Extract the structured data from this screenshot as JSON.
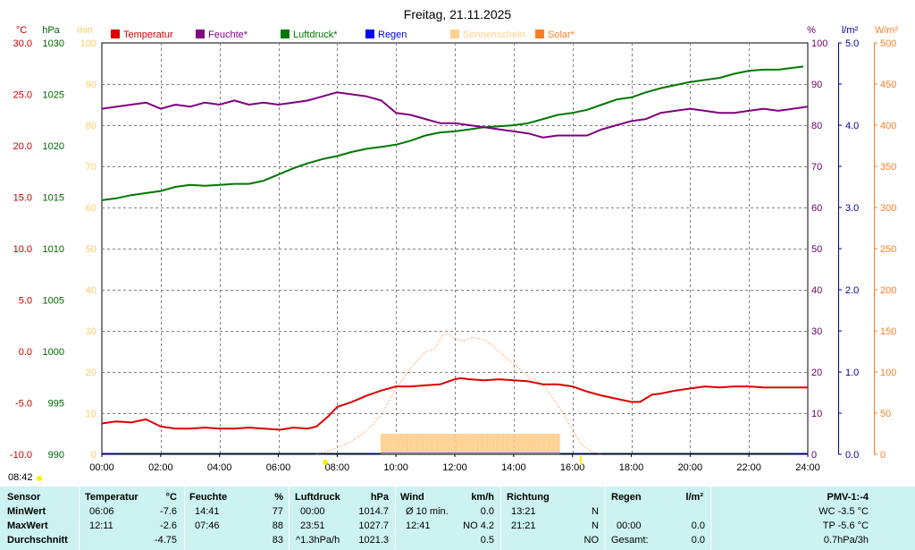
{
  "title": "Freitag, 21.11.2025",
  "timestamp": "08:42",
  "axes": {
    "left_units": [
      "°C",
      "hPa",
      "min"
    ],
    "right_units": [
      "%",
      "l/m²",
      "W/m²"
    ],
    "temp_ticks": [
      "30.0",
      "25.0",
      "20.0",
      "15.0",
      "10.0",
      "5.0",
      "0.0",
      "-5.0",
      "-10.0"
    ],
    "hpa_ticks": [
      "1030",
      "1025",
      "1020",
      "1015",
      "1010",
      "1005",
      "1000",
      "995",
      "990"
    ],
    "min_ticks": [
      "100",
      "90",
      "80",
      "70",
      "60",
      "50",
      "40",
      "30",
      "20",
      "10",
      "0"
    ],
    "pct_ticks": [
      "100",
      "90",
      "80",
      "70",
      "60",
      "50",
      "40",
      "30",
      "20",
      "10",
      "0"
    ],
    "rain_ticks": [
      "5.0",
      "4.0",
      "3.0",
      "2.0",
      "1.0",
      "0.0"
    ],
    "solar_ticks": [
      "500",
      "450",
      "400",
      "350",
      "300",
      "250",
      "200",
      "150",
      "100",
      "50",
      "0"
    ],
    "time_ticks": [
      "00:00",
      "02:00",
      "04:00",
      "06:00",
      "08:00",
      "10:00",
      "12:00",
      "14:00",
      "16:00",
      "18:00",
      "20:00",
      "22:00",
      "24:00"
    ]
  },
  "legend": [
    {
      "label": "Temperatur",
      "color": "#dd0000"
    },
    {
      "label": "Feuchte*",
      "color": "#800080"
    },
    {
      "label": "Luftdruck*",
      "color": "#007700"
    },
    {
      "label": "Regen",
      "color": "#0000ff"
    },
    {
      "label": "Sonnenschein",
      "color": "#ffd090"
    },
    {
      "label": "Solar*",
      "color": "#ff7f27"
    }
  ],
  "colors": {
    "temp": "#dd0000",
    "hum": "#800080",
    "press": "#007700",
    "rain": "#0000ff",
    "sun": "#ffd090",
    "solar": "#ff7f27",
    "axis_temp": "#cc0000",
    "axis_hpa": "#006600",
    "axis_min": "#ffcc66",
    "axis_pct": "#660066",
    "axis_rain": "#000099",
    "axis_solar": "#ff7f27",
    "grid": "#808080"
  },
  "chart_data": {
    "type": "line",
    "title": "Freitag, 21.11.2025",
    "x_unit": "hours",
    "xlim": [
      0,
      24
    ],
    "series": [
      {
        "name": "Temperatur",
        "unit": "°C",
        "ylim": [
          -10,
          30
        ],
        "points": [
          [
            0,
            -7.0
          ],
          [
            0.5,
            -6.8
          ],
          [
            1,
            -6.9
          ],
          [
            1.5,
            -6.6
          ],
          [
            2,
            -7.3
          ],
          [
            2.5,
            -7.5
          ],
          [
            3,
            -7.5
          ],
          [
            3.5,
            -7.4
          ],
          [
            4,
            -7.5
          ],
          [
            4.5,
            -7.5
          ],
          [
            5,
            -7.4
          ],
          [
            5.5,
            -7.5
          ],
          [
            6,
            -7.6
          ],
          [
            6.1,
            -7.6
          ],
          [
            6.5,
            -7.4
          ],
          [
            7,
            -7.5
          ],
          [
            7.3,
            -7.3
          ],
          [
            7.7,
            -6.3
          ],
          [
            8,
            -5.4
          ],
          [
            8.5,
            -4.9
          ],
          [
            9,
            -4.3
          ],
          [
            9.5,
            -3.8
          ],
          [
            10,
            -3.4
          ],
          [
            10.5,
            -3.4
          ],
          [
            11,
            -3.3
          ],
          [
            11.5,
            -3.2
          ],
          [
            12,
            -2.7
          ],
          [
            12.2,
            -2.6
          ],
          [
            12.5,
            -2.7
          ],
          [
            13,
            -2.8
          ],
          [
            13.5,
            -2.7
          ],
          [
            14,
            -2.8
          ],
          [
            14.5,
            -2.9
          ],
          [
            15,
            -3.2
          ],
          [
            15.5,
            -3.2
          ],
          [
            16,
            -3.4
          ],
          [
            16.5,
            -3.9
          ],
          [
            17,
            -4.3
          ],
          [
            17.5,
            -4.6
          ],
          [
            18,
            -4.9
          ],
          [
            18.3,
            -4.9
          ],
          [
            18.7,
            -4.2
          ],
          [
            19,
            -4.1
          ],
          [
            19.5,
            -3.8
          ],
          [
            20,
            -3.6
          ],
          [
            20.5,
            -3.4
          ],
          [
            21,
            -3.5
          ],
          [
            21.5,
            -3.4
          ],
          [
            22,
            -3.4
          ],
          [
            22.5,
            -3.5
          ],
          [
            23,
            -3.5
          ],
          [
            24,
            -3.5
          ]
        ]
      },
      {
        "name": "Feuchte*",
        "unit": "%",
        "ylim": [
          0,
          100
        ],
        "points": [
          [
            0,
            84
          ],
          [
            0.5,
            84.5
          ],
          [
            1,
            85
          ],
          [
            1.5,
            85.5
          ],
          [
            2,
            84
          ],
          [
            2.5,
            85
          ],
          [
            3,
            84.5
          ],
          [
            3.5,
            85.5
          ],
          [
            4,
            85
          ],
          [
            4.5,
            86
          ],
          [
            5,
            85
          ],
          [
            5.5,
            85.5
          ],
          [
            6,
            85
          ],
          [
            6.5,
            85.5
          ],
          [
            7,
            86
          ],
          [
            7.5,
            87
          ],
          [
            8,
            88
          ],
          [
            8.5,
            87.5
          ],
          [
            9,
            87
          ],
          [
            9.5,
            86
          ],
          [
            10,
            83
          ],
          [
            10.5,
            82.5
          ],
          [
            11,
            81.5
          ],
          [
            11.5,
            80.5
          ],
          [
            12,
            80.5
          ],
          [
            12.5,
            80
          ],
          [
            13,
            79.5
          ],
          [
            13.5,
            79
          ],
          [
            14,
            78.5
          ],
          [
            14.5,
            78
          ],
          [
            15,
            77
          ],
          [
            15.5,
            77.5
          ],
          [
            16,
            77.5
          ],
          [
            16.5,
            77.5
          ],
          [
            17,
            79
          ],
          [
            17.5,
            80
          ],
          [
            18,
            81
          ],
          [
            18.5,
            81.5
          ],
          [
            19,
            83
          ],
          [
            19.5,
            83.5
          ],
          [
            20,
            84
          ],
          [
            20.5,
            83.5
          ],
          [
            21,
            83
          ],
          [
            21.5,
            83
          ],
          [
            22,
            83.5
          ],
          [
            22.5,
            84
          ],
          [
            23,
            83.5
          ],
          [
            24,
            84.5
          ]
        ]
      },
      {
        "name": "Luftdruck*",
        "unit": "hPa",
        "ylim": [
          990,
          1030
        ],
        "points": [
          [
            0,
            1014.7
          ],
          [
            0.5,
            1014.9
          ],
          [
            1,
            1015.2
          ],
          [
            1.5,
            1015.4
          ],
          [
            2,
            1015.6
          ],
          [
            2.5,
            1016.0
          ],
          [
            3,
            1016.2
          ],
          [
            3.5,
            1016.1
          ],
          [
            4,
            1016.2
          ],
          [
            4.5,
            1016.3
          ],
          [
            5,
            1016.3
          ],
          [
            5.5,
            1016.6
          ],
          [
            6,
            1017.2
          ],
          [
            6.5,
            1017.8
          ],
          [
            7,
            1018.3
          ],
          [
            7.5,
            1018.7
          ],
          [
            8,
            1019.0
          ],
          [
            8.5,
            1019.4
          ],
          [
            9,
            1019.7
          ],
          [
            9.5,
            1019.9
          ],
          [
            10,
            1020.1
          ],
          [
            10.5,
            1020.5
          ],
          [
            11,
            1021.0
          ],
          [
            11.5,
            1021.3
          ],
          [
            12,
            1021.4
          ],
          [
            12.5,
            1021.6
          ],
          [
            13,
            1021.8
          ],
          [
            13.5,
            1021.9
          ],
          [
            14,
            1022.0
          ],
          [
            14.5,
            1022.2
          ],
          [
            15,
            1022.6
          ],
          [
            15.5,
            1023.0
          ],
          [
            16,
            1023.2
          ],
          [
            16.5,
            1023.5
          ],
          [
            17,
            1024.0
          ],
          [
            17.5,
            1024.5
          ],
          [
            18,
            1024.7
          ],
          [
            18.5,
            1025.2
          ],
          [
            19,
            1025.6
          ],
          [
            19.5,
            1025.9
          ],
          [
            20,
            1026.2
          ],
          [
            20.5,
            1026.4
          ],
          [
            21,
            1026.6
          ],
          [
            21.5,
            1027.0
          ],
          [
            22,
            1027.3
          ],
          [
            22.5,
            1027.4
          ],
          [
            23,
            1027.4
          ],
          [
            23.85,
            1027.7
          ]
        ]
      },
      {
        "name": "Solar*",
        "unit": "W/m²",
        "ylim": [
          0,
          500
        ],
        "points": [
          [
            7.3,
            0
          ],
          [
            7.5,
            2
          ],
          [
            8,
            8
          ],
          [
            8.5,
            16
          ],
          [
            9,
            28
          ],
          [
            9.5,
            48
          ],
          [
            10,
            80
          ],
          [
            10.5,
            105
          ],
          [
            11,
            125
          ],
          [
            11.3,
            128
          ],
          [
            11.6,
            145
          ],
          [
            11.8,
            147
          ],
          [
            12,
            140
          ],
          [
            12.3,
            138
          ],
          [
            12.6,
            142
          ],
          [
            12.9,
            140
          ],
          [
            13.2,
            135
          ],
          [
            13.5,
            125
          ],
          [
            14,
            110
          ],
          [
            14.5,
            95
          ],
          [
            15,
            85
          ],
          [
            15.5,
            60
          ],
          [
            16,
            30
          ],
          [
            16.3,
            12
          ],
          [
            16.7,
            2
          ],
          [
            17,
            0
          ]
        ]
      },
      {
        "name": "Sonnenschein",
        "unit": "min",
        "ylim": [
          0,
          100
        ],
        "intervals": [
          [
            9.5,
            15.6
          ]
        ],
        "level": 5
      }
    ]
  },
  "stats": {
    "headers": {
      "sensor": "Sensor",
      "temp": "Temperatur",
      "temp_unit": "°C",
      "hum": "Feuchte",
      "hum_unit": "%",
      "press": "Luftdruck",
      "press_unit": "hPa",
      "wind": "Wind",
      "wind_unit": "km/h",
      "dir": "Richtung",
      "rain": "Regen",
      "rain_unit": "l/m²",
      "pmv": "PMV-1:-4"
    },
    "rows": [
      {
        "label": "MinWert",
        "temp_time": "06:06",
        "temp_val": "-7.6",
        "hum_time": "14:41",
        "hum_val": "77",
        "press_time": "00:00",
        "press_val": "1014.7",
        "wind_label": "Ø 10 min.",
        "wind_val": "0.0",
        "dir_time": "13:21",
        "dir_val": "N",
        "rain_time": "",
        "rain_val": "",
        "extra": "WC -3.5 °C"
      },
      {
        "label": "MaxWert",
        "temp_time": "12:11",
        "temp_val": "-2.6",
        "hum_time": "07:46",
        "hum_val": "88",
        "press_time": "23:51",
        "press_val": "1027.7",
        "wind_label": "12:41",
        "wind_val": "NO 4.2",
        "dir_time": "21:21",
        "dir_val": "N",
        "rain_time": "00:00",
        "rain_val": "0.0",
        "extra": "TP -5.6 °C"
      },
      {
        "label": "Durchschnitt",
        "temp_time": "",
        "temp_val": "-4.75",
        "hum_time": "",
        "hum_val": "83",
        "press_time": "^1.3hPa/h",
        "press_val": "1021.3",
        "wind_label": "",
        "wind_val": "0.5",
        "dir_time": "",
        "dir_val": "NO",
        "rain_time": "Gesamt:",
        "rain_val": "0.0",
        "extra": "0.7hPa/3h"
      }
    ]
  }
}
